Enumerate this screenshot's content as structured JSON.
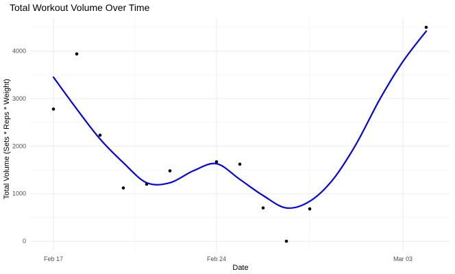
{
  "chart_data": {
    "type": "scatter",
    "title": "Total Workout Volume Over Time",
    "xlabel": "Date",
    "ylabel": "Total Volume (Sets * Reps * Weight)",
    "x_ticks": [
      {
        "date": "2024-02-17",
        "label": "Feb 17"
      },
      {
        "date": "2024-02-24",
        "label": "Feb 24"
      },
      {
        "date": "2024-03-03",
        "label": "Mar 03"
      }
    ],
    "y_ticks": [
      0,
      1000,
      2000,
      3000,
      4000
    ],
    "xlim": [
      "2024-02-16",
      "2024-03-05"
    ],
    "ylim": [
      -200,
      4700
    ],
    "grid": true,
    "legend": "none",
    "colors": {
      "points": "#000000",
      "smooth": "#0000ff"
    },
    "points": [
      {
        "x": "2024-02-17",
        "y": 2780
      },
      {
        "x": "2024-02-18",
        "y": 3940
      },
      {
        "x": "2024-02-19",
        "y": 2230
      },
      {
        "x": "2024-02-20",
        "y": 1120
      },
      {
        "x": "2024-02-21",
        "y": 1200
      },
      {
        "x": "2024-02-22",
        "y": 1480
      },
      {
        "x": "2024-02-24",
        "y": 1670
      },
      {
        "x": "2024-02-25",
        "y": 1620
      },
      {
        "x": "2024-02-26",
        "y": 700
      },
      {
        "x": "2024-02-27",
        "y": 0
      },
      {
        "x": "2024-02-28",
        "y": 680
      },
      {
        "x": "2024-03-04",
        "y": 4500
      }
    ],
    "smooth": [
      {
        "x": "2024-02-17",
        "y": 3450
      },
      {
        "x": "2024-02-18",
        "y": 2780
      },
      {
        "x": "2024-02-19",
        "y": 2150
      },
      {
        "x": "2024-02-20",
        "y": 1650
      },
      {
        "x": "2024-02-21",
        "y": 1230
      },
      {
        "x": "2024-02-22",
        "y": 1230
      },
      {
        "x": "2024-02-23",
        "y": 1480
      },
      {
        "x": "2024-02-24",
        "y": 1630
      },
      {
        "x": "2024-02-25",
        "y": 1300
      },
      {
        "x": "2024-02-26",
        "y": 960
      },
      {
        "x": "2024-02-27",
        "y": 700
      },
      {
        "x": "2024-02-28",
        "y": 840
      },
      {
        "x": "2024-02-29",
        "y": 1300
      },
      {
        "x": "2024-03-01",
        "y": 2050
      },
      {
        "x": "2024-03-02",
        "y": 2980
      },
      {
        "x": "2024-03-03",
        "y": 3780
      },
      {
        "x": "2024-03-04",
        "y": 4420
      }
    ]
  }
}
